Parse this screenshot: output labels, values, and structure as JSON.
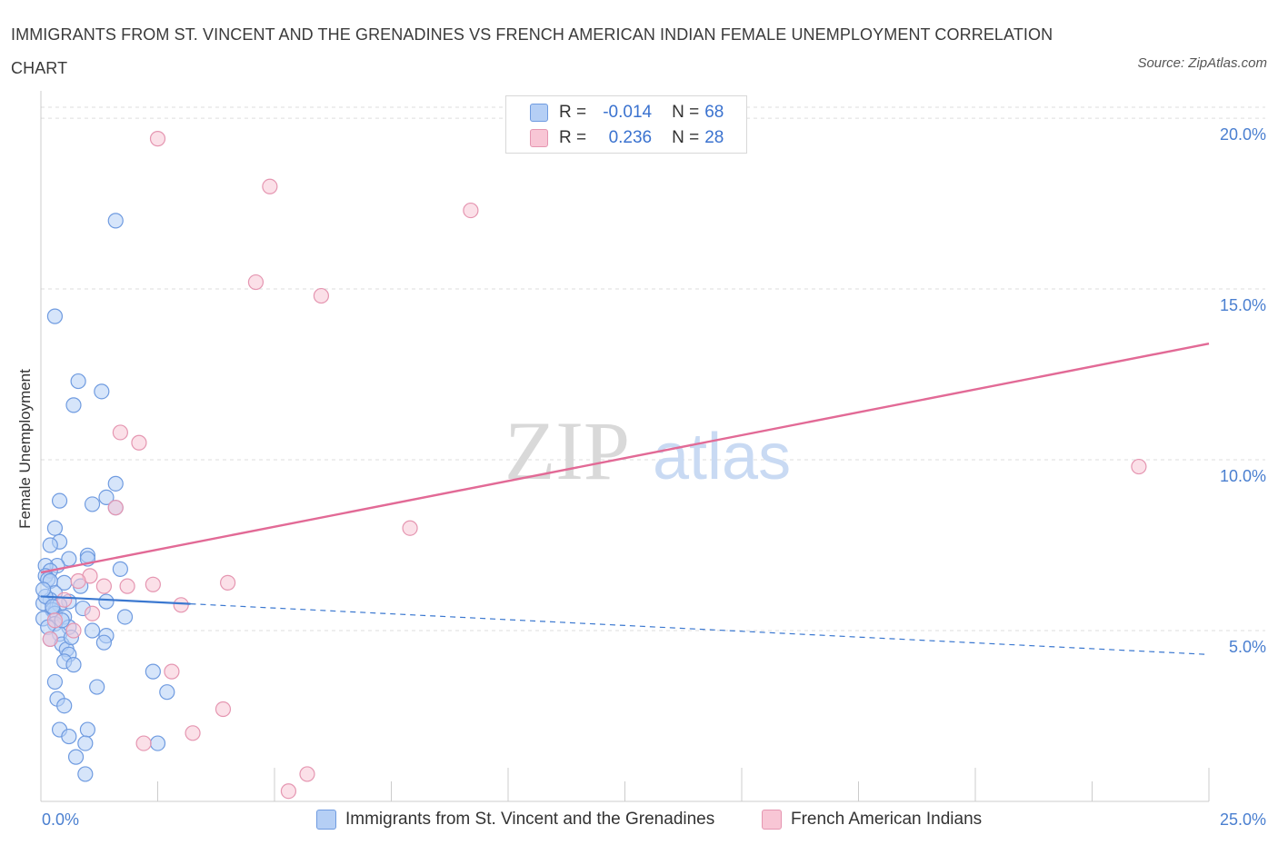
{
  "header": {
    "title": "IMMIGRANTS FROM ST. VINCENT AND THE GRENADINES VS FRENCH AMERICAN INDIAN FEMALE UNEMPLOYMENT CORRELATION CHART",
    "source": "Source: ZipAtlas.com"
  },
  "watermark": {
    "zip": "ZIP",
    "atlas": "atlas"
  },
  "legend": {
    "r_label": "R =",
    "n_label": "N =",
    "series1": {
      "r": "-0.014",
      "n": "68"
    },
    "series2": {
      "r": "0.236",
      "n": "28"
    }
  },
  "colors": {
    "blue_fill": "#b5cff5",
    "blue_stroke": "#6f9be0",
    "blue_line": "#3b78d0",
    "pink_fill": "#f8c6d5",
    "pink_stroke": "#e596b1",
    "pink_line": "#e26a96",
    "tick_text": "#4a7fd0",
    "grid": "#dddddd"
  },
  "chart_data": {
    "type": "scatter",
    "title": "IMMIGRANTS FROM ST. VINCENT AND THE GRENADINES VS FRENCH AMERICAN INDIAN FEMALE UNEMPLOYMENT CORRELATION CHART",
    "xlabel": "",
    "ylabel": "Female Unemployment",
    "xlim": [
      0,
      25
    ],
    "ylim": [
      0,
      20.8
    ],
    "x_tick_labels": [
      "0.0%",
      "25.0%"
    ],
    "y_ticks": [
      5,
      10,
      15,
      20
    ],
    "y_tick_labels": [
      "5.0%",
      "10.0%",
      "15.0%",
      "20.0%"
    ],
    "grid": true,
    "legend_position": "bottom",
    "series": [
      {
        "name": "Immigrants from St. Vincent and the Grenadines",
        "color": "blue",
        "r": -0.014,
        "n": 68,
        "trend": {
          "x0": 0.0,
          "y0": 6.0,
          "x1": 25.0,
          "y1": 4.3,
          "solid_until_x": 3.2
        },
        "points": [
          [
            1.6,
            17.0
          ],
          [
            0.3,
            14.2
          ],
          [
            0.8,
            12.3
          ],
          [
            1.3,
            12.0
          ],
          [
            0.7,
            11.6
          ],
          [
            1.6,
            9.3
          ],
          [
            0.4,
            8.8
          ],
          [
            1.4,
            8.9
          ],
          [
            1.1,
            8.7
          ],
          [
            1.6,
            8.6
          ],
          [
            0.3,
            8.0
          ],
          [
            0.4,
            7.6
          ],
          [
            0.2,
            7.5
          ],
          [
            1.0,
            7.2
          ],
          [
            1.0,
            7.1
          ],
          [
            0.6,
            7.1
          ],
          [
            0.35,
            6.9
          ],
          [
            0.1,
            6.9
          ],
          [
            1.7,
            6.8
          ],
          [
            0.2,
            6.75
          ],
          [
            0.1,
            6.6
          ],
          [
            0.15,
            6.5
          ],
          [
            0.5,
            6.4
          ],
          [
            0.2,
            6.45
          ],
          [
            0.85,
            6.3
          ],
          [
            0.3,
            6.1
          ],
          [
            0.6,
            5.85
          ],
          [
            0.2,
            5.9
          ],
          [
            0.05,
            5.8
          ],
          [
            0.4,
            5.75
          ],
          [
            1.4,
            5.85
          ],
          [
            0.9,
            5.65
          ],
          [
            0.25,
            5.6
          ],
          [
            0.3,
            5.5
          ],
          [
            0.5,
            5.4
          ],
          [
            1.8,
            5.4
          ],
          [
            0.05,
            5.35
          ],
          [
            0.3,
            5.2
          ],
          [
            0.6,
            5.1
          ],
          [
            0.15,
            5.1
          ],
          [
            0.4,
            4.9
          ],
          [
            1.1,
            5.0
          ],
          [
            1.4,
            4.85
          ],
          [
            0.2,
            4.75
          ],
          [
            1.35,
            4.65
          ],
          [
            0.45,
            4.6
          ],
          [
            0.55,
            4.45
          ],
          [
            0.6,
            4.3
          ],
          [
            0.5,
            4.1
          ],
          [
            0.7,
            4.0
          ],
          [
            2.4,
            3.8
          ],
          [
            0.3,
            3.5
          ],
          [
            1.2,
            3.35
          ],
          [
            2.7,
            3.2
          ],
          [
            0.35,
            3.0
          ],
          [
            0.5,
            2.8
          ],
          [
            0.4,
            2.1
          ],
          [
            1.0,
            2.1
          ],
          [
            0.6,
            1.9
          ],
          [
            0.95,
            1.7
          ],
          [
            2.5,
            1.7
          ],
          [
            0.75,
            1.3
          ],
          [
            0.95,
            0.8
          ],
          [
            0.1,
            6.0
          ],
          [
            0.25,
            5.7
          ],
          [
            0.45,
            5.3
          ],
          [
            0.65,
            4.8
          ],
          [
            0.05,
            6.2
          ]
        ]
      },
      {
        "name": "French American Indians",
        "color": "pink",
        "r": 0.236,
        "n": 28,
        "trend": {
          "x0": 0.0,
          "y0": 6.7,
          "x1": 25.0,
          "y1": 13.4
        },
        "points": [
          [
            2.5,
            19.4
          ],
          [
            4.9,
            18.0
          ],
          [
            9.2,
            17.3
          ],
          [
            4.6,
            15.2
          ],
          [
            6.0,
            14.8
          ],
          [
            1.7,
            10.8
          ],
          [
            2.1,
            10.5
          ],
          [
            23.5,
            9.8
          ],
          [
            1.6,
            8.6
          ],
          [
            7.9,
            8.0
          ],
          [
            1.05,
            6.6
          ],
          [
            0.8,
            6.45
          ],
          [
            4.0,
            6.4
          ],
          [
            1.35,
            6.3
          ],
          [
            1.85,
            6.3
          ],
          [
            2.4,
            6.35
          ],
          [
            3.0,
            5.75
          ],
          [
            1.1,
            5.5
          ],
          [
            0.7,
            5.0
          ],
          [
            0.2,
            4.75
          ],
          [
            2.8,
            3.8
          ],
          [
            3.9,
            2.7
          ],
          [
            3.25,
            2.0
          ],
          [
            2.2,
            1.7
          ],
          [
            5.7,
            0.8
          ],
          [
            5.3,
            0.3
          ],
          [
            0.3,
            5.3
          ],
          [
            0.5,
            5.9
          ]
        ]
      }
    ]
  },
  "bottom_legend": {
    "series1_label": "Immigrants from St. Vincent and the Grenadines",
    "series2_label": "French American Indians"
  }
}
